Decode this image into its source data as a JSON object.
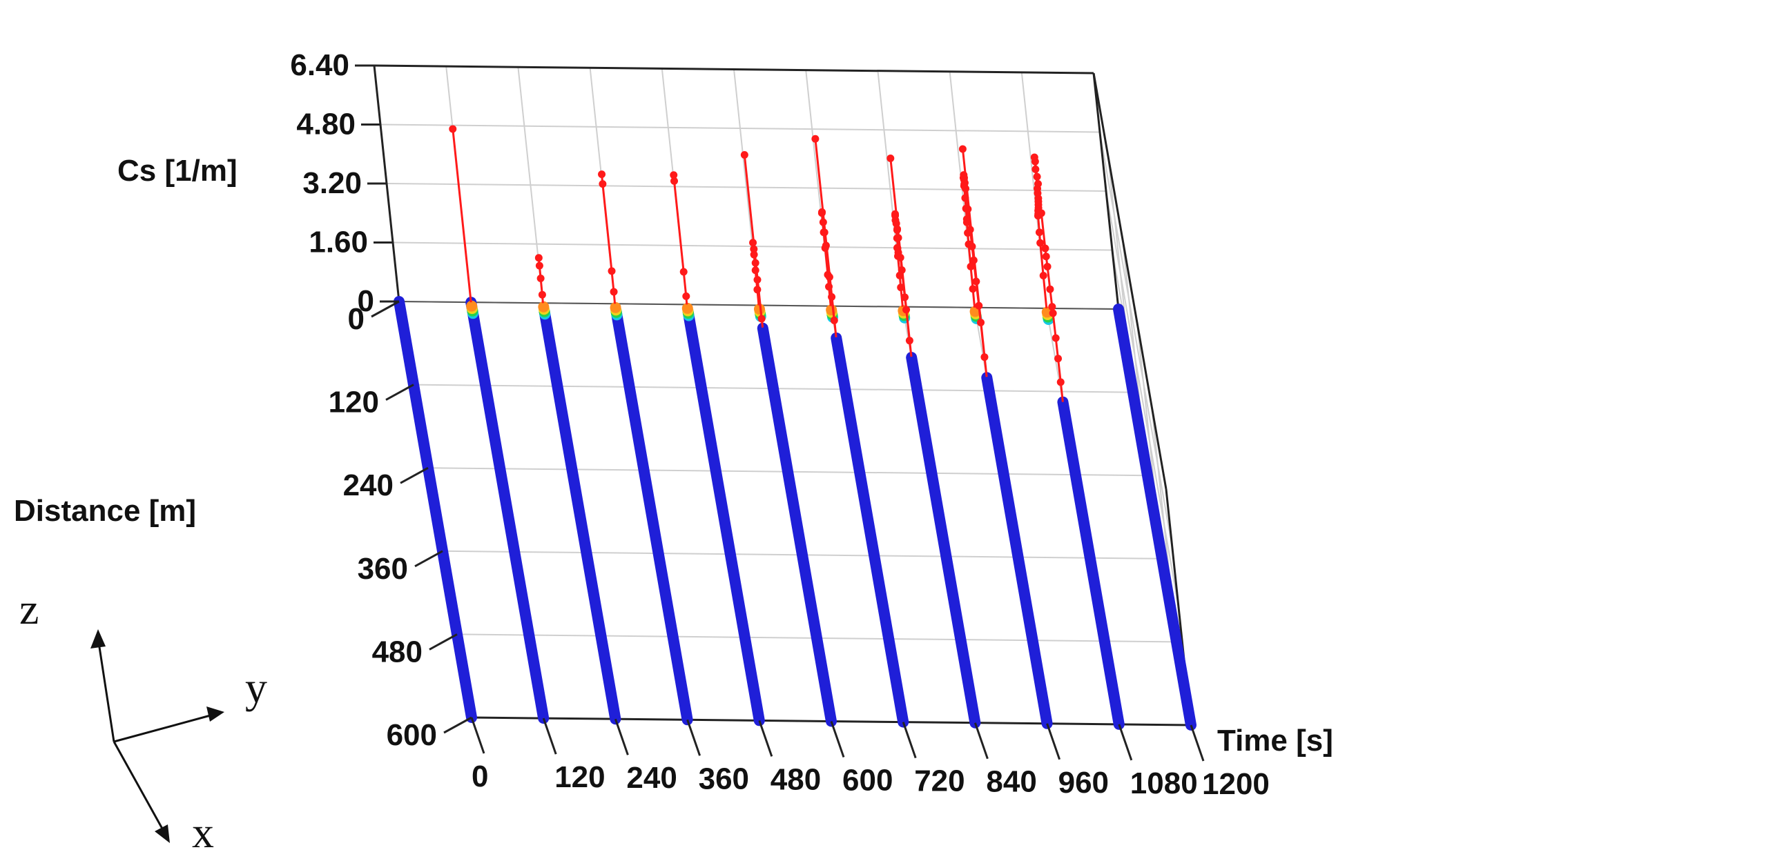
{
  "chart_data": {
    "type": "line",
    "dimensions": "3d",
    "zlabel": "Cs [1/m]",
    "ylabel": "Distance [m]",
    "xlabel": "Time [s]",
    "time_ticks": [
      "0",
      "120",
      "240",
      "360",
      "480",
      "600",
      "720",
      "840",
      "960",
      "1080",
      "1200"
    ],
    "distance_ticks": [
      "0",
      "120",
      "240",
      "360",
      "480",
      "600"
    ],
    "cs_ticks": [
      "0",
      "1.60",
      "3.20",
      "4.80",
      "6.40"
    ],
    "time_range": [
      0,
      1200
    ],
    "distance_range": [
      0,
      600
    ],
    "cs_range": [
      0,
      6.4
    ],
    "grid": true,
    "colors": {
      "low": "#1f1fd8",
      "high": "#ff1a1a",
      "transition": [
        "#14c8e6",
        "#28d24b",
        "#f0d21e",
        "#ff8c1e"
      ]
    },
    "series": [
      {
        "time": 0,
        "points": [
          [
            0,
            0
          ]
        ]
      },
      {
        "time": 120,
        "points": [
          [
            0,
            0
          ],
          [
            0,
            4.7
          ]
        ]
      },
      {
        "time": 240,
        "points": [
          [
            0,
            0
          ],
          [
            4,
            0.3
          ],
          [
            7,
            0.8
          ],
          [
            10,
            1.2
          ],
          [
            12,
            1.45
          ]
        ]
      },
      {
        "time": 360,
        "points": [
          [
            0,
            0
          ],
          [
            4,
            0.4
          ],
          [
            6,
            1.0
          ],
          [
            8,
            3.4
          ],
          [
            10,
            3.7
          ]
        ]
      },
      {
        "time": 480,
        "points": [
          [
            0,
            0
          ],
          [
            4,
            0.3
          ],
          [
            6,
            1.0
          ],
          [
            8,
            3.5
          ],
          [
            10,
            3.7
          ]
        ]
      },
      {
        "time": 600,
        "points": [
          [
            0,
            0
          ],
          [
            4,
            0.5
          ],
          [
            8,
            1.1
          ],
          [
            12,
            1.6
          ],
          [
            16,
            2.0
          ],
          [
            20,
            1.9
          ],
          [
            24,
            1.6
          ],
          [
            27,
            1.2
          ],
          [
            30,
            0.2
          ],
          [
            32,
            0
          ],
          [
            33,
            4.7
          ]
        ]
      },
      {
        "time": 720,
        "points": [
          [
            0,
            0
          ],
          [
            4,
            0.6
          ],
          [
            8,
            1.0
          ],
          [
            12,
            1.8
          ],
          [
            16,
            2.3
          ],
          [
            20,
            2.9
          ],
          [
            24,
            3.0
          ],
          [
            28,
            2.8
          ],
          [
            32,
            2.6
          ],
          [
            35,
            2.3
          ],
          [
            38,
            1.5
          ],
          [
            40,
            1.0
          ],
          [
            42,
            0.4
          ],
          [
            45,
            0
          ],
          [
            46,
            5.4
          ]
        ]
      },
      {
        "time": 840,
        "points": [
          [
            0,
            0
          ],
          [
            4,
            0.6
          ],
          [
            8,
            1.0
          ],
          [
            12,
            1.6
          ],
          [
            16,
            1.9
          ],
          [
            22,
            2.0
          ],
          [
            28,
            2.0
          ],
          [
            34,
            2.5
          ],
          [
            40,
            3.1
          ],
          [
            44,
            3.3
          ],
          [
            47,
            3.4
          ],
          [
            50,
            3.2
          ],
          [
            54,
            3.1
          ],
          [
            58,
            3.2
          ],
          [
            60,
            3.0
          ],
          [
            62,
            2.5
          ],
          [
            64,
            2.2
          ],
          [
            66,
            1.5
          ],
          [
            68,
            1.2
          ],
          [
            70,
            0.4
          ],
          [
            72,
            0
          ],
          [
            73,
            5.4
          ]
        ]
      },
      {
        "time": 960,
        "points": [
          [
            0,
            0
          ],
          [
            5,
            0.6
          ],
          [
            10,
            1.3
          ],
          [
            15,
            2.0
          ],
          [
            20,
            2.4
          ],
          [
            26,
            2.8
          ],
          [
            32,
            3.0
          ],
          [
            38,
            3.4
          ],
          [
            44,
            3.8
          ],
          [
            48,
            4.2
          ],
          [
            52,
            4.5
          ],
          [
            56,
            4.4
          ],
          [
            60,
            4.6
          ],
          [
            64,
            4.8
          ],
          [
            68,
            4.8
          ],
          [
            70,
            4.7
          ],
          [
            73,
            4.6
          ],
          [
            76,
            4.1
          ],
          [
            79,
            3.6
          ],
          [
            82,
            3.2
          ],
          [
            86,
            2.9
          ],
          [
            90,
            2.4
          ],
          [
            93,
            1.8
          ],
          [
            96,
            1.4
          ],
          [
            98,
            0.5
          ],
          [
            100,
            0
          ],
          [
            101,
            6.2
          ]
        ]
      },
      {
        "time": 1080,
        "points": [
          [
            0,
            0
          ],
          [
            6,
            1.0
          ],
          [
            12,
            2.0
          ],
          [
            18,
            2.4
          ],
          [
            26,
            3.0
          ],
          [
            34,
            3.2
          ],
          [
            40,
            3.4
          ],
          [
            46,
            3.5
          ],
          [
            52,
            3.7
          ],
          [
            58,
            3.9
          ],
          [
            64,
            4.1
          ],
          [
            68,
            4.4
          ],
          [
            70,
            4.3
          ],
          [
            72,
            4.6
          ],
          [
            76,
            5.2
          ],
          [
            80,
            5.6
          ],
          [
            86,
            5.6
          ],
          [
            92,
            5.3
          ],
          [
            97,
            5.2
          ],
          [
            102,
            4.5
          ],
          [
            105,
            3.6
          ],
          [
            106,
            3.4
          ],
          [
            110,
            3.2
          ],
          [
            116,
            2.7
          ],
          [
            120,
            2.3
          ],
          [
            124,
            2.2
          ],
          [
            128,
            1.6
          ],
          [
            131,
            1.1
          ],
          [
            133,
            0.5
          ],
          [
            135,
            0
          ]
        ]
      },
      {
        "time": 1200,
        "points": [
          [
            0,
            0
          ]
        ]
      }
    ]
  },
  "triad": {
    "z": "z",
    "y": "y",
    "x": "x"
  }
}
